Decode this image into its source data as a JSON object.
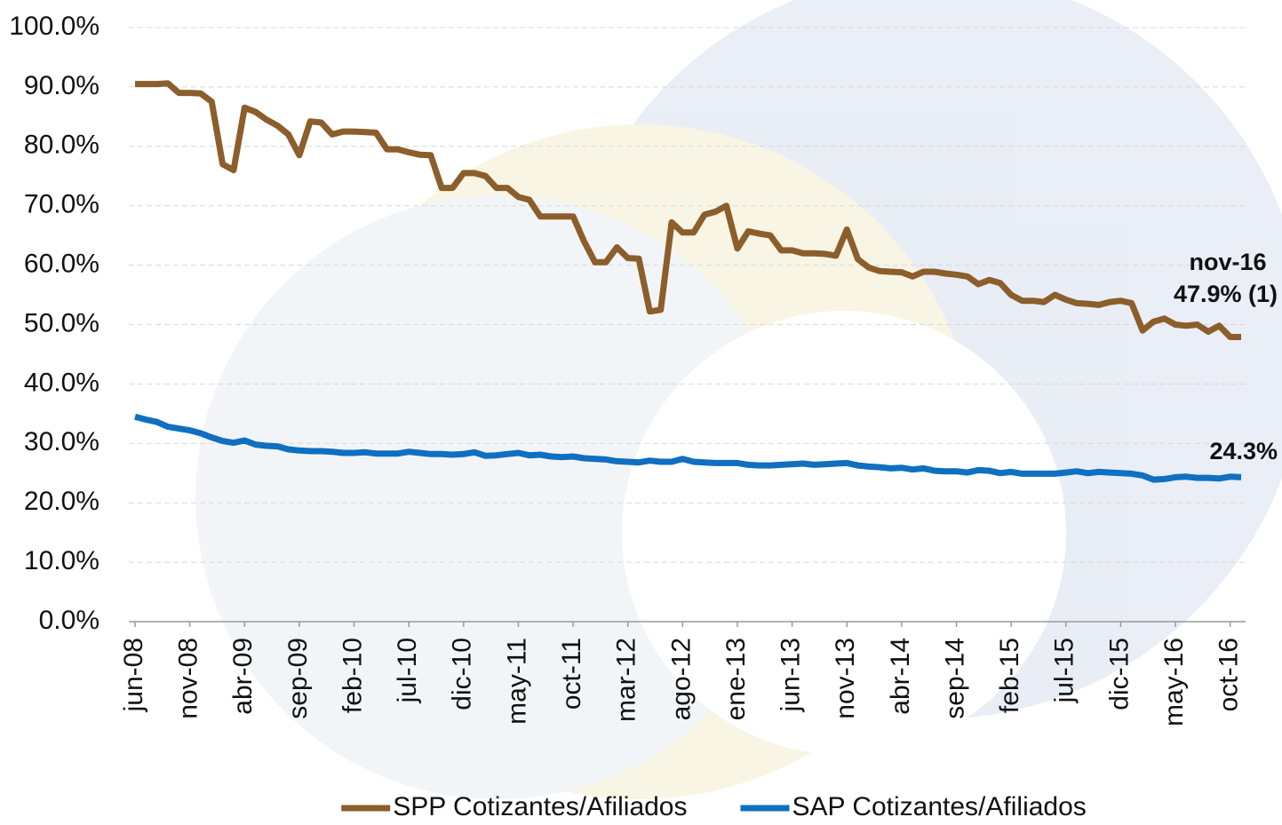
{
  "chart_data": {
    "type": "line",
    "categories": [
      "jun-08",
      null,
      null,
      null,
      null,
      "nov-08",
      null,
      null,
      null,
      null,
      "abr-09",
      null,
      null,
      null,
      null,
      "sep-09",
      null,
      null,
      null,
      null,
      "feb-10",
      null,
      null,
      null,
      null,
      "jul-10",
      null,
      null,
      null,
      null,
      "dic-10",
      null,
      null,
      null,
      null,
      "may-11",
      null,
      null,
      null,
      null,
      "oct-11",
      null,
      null,
      null,
      null,
      "mar-12",
      null,
      null,
      null,
      null,
      "ago-12",
      null,
      null,
      null,
      null,
      "ene-13",
      null,
      null,
      null,
      null,
      "jun-13",
      null,
      null,
      null,
      null,
      "nov-13",
      null,
      null,
      null,
      null,
      "abr-14",
      null,
      null,
      null,
      null,
      "sep-14",
      null,
      null,
      null,
      null,
      "feb-15",
      null,
      null,
      null,
      null,
      "jul-15",
      null,
      null,
      null,
      null,
      "dic-15",
      null,
      null,
      null,
      null,
      "may-16",
      null,
      null,
      null,
      null,
      "oct-16",
      null
    ],
    "series": [
      {
        "name": "SPP Cotizantes/Afiliados",
        "color": "#8b5e2b",
        "values": [
          90.5,
          90.5,
          90.5,
          90.6,
          89,
          89,
          88.9,
          87.5,
          77,
          76,
          86.5,
          85.8,
          84.5,
          83.5,
          82,
          78.5,
          84.2,
          84,
          82,
          82.5,
          82.5,
          82.4,
          82.3,
          79.5,
          79.5,
          79,
          78.6,
          78.5,
          73,
          73,
          75.5,
          75.5,
          75,
          73,
          73,
          71.5,
          71,
          68.2,
          68.2,
          68.2,
          68.2,
          64,
          60.5,
          60.5,
          63,
          61.2,
          61.1,
          52.2,
          52.5,
          67.2,
          65.5,
          65.5,
          68.5,
          69,
          70,
          62.8,
          65.7,
          65.3,
          65,
          62.5,
          62.5,
          62,
          62,
          61.9,
          61.6,
          66,
          61,
          59.6,
          59,
          58.9,
          58.8,
          58.1,
          58.9,
          58.9,
          58.6,
          58.4,
          58.1,
          56.8,
          57.5,
          57,
          55,
          54,
          54,
          53.8,
          55,
          54.2,
          53.6,
          53.5,
          53.3,
          53.8,
          54,
          53.6,
          49,
          50.5,
          51,
          50,
          49.8,
          50,
          48.8,
          49.8,
          47.9,
          47.9
        ]
      },
      {
        "name": "SAP Cotizantes/Afiliados",
        "color": "#0f6fc0",
        "values": [
          34.5,
          34,
          33.6,
          32.8,
          32.5,
          32.2,
          31.7,
          31,
          30.4,
          30.1,
          30.5,
          29.8,
          29.6,
          29.5,
          29,
          28.8,
          28.7,
          28.7,
          28.6,
          28.4,
          28.4,
          28.5,
          28.3,
          28.3,
          28.3,
          28.6,
          28.4,
          28.2,
          28.2,
          28.1,
          28.2,
          28.5,
          27.9,
          28,
          28.2,
          28.4,
          28,
          28.1,
          27.8,
          27.7,
          27.8,
          27.5,
          27.4,
          27.3,
          27,
          26.9,
          26.8,
          27.1,
          26.9,
          26.9,
          27.4,
          26.9,
          26.8,
          26.7,
          26.7,
          26.7,
          26.4,
          26.3,
          26.3,
          26.4,
          26.5,
          26.6,
          26.4,
          26.5,
          26.6,
          26.7,
          26.3,
          26.1,
          26,
          25.8,
          25.9,
          25.6,
          25.8,
          25.4,
          25.3,
          25.3,
          25.1,
          25.5,
          25.4,
          25,
          25.2,
          24.9,
          24.9,
          24.9,
          24.9,
          25.1,
          25.3,
          25,
          25.2,
          25.1,
          25,
          24.9,
          24.6,
          23.9,
          24,
          24.3,
          24.4,
          24.2,
          24.2,
          24.1,
          24.4,
          24.3
        ]
      }
    ],
    "annotations": [
      "nov-16",
      "47.9% (1)",
      "24.3%"
    ],
    "ylim": [
      0,
      100
    ],
    "yticks": [
      {
        "value": 0,
        "label": "0.0%"
      },
      {
        "value": 10,
        "label": "10.0%"
      },
      {
        "value": 20,
        "label": "20.0%"
      },
      {
        "value": 30,
        "label": "30.0%"
      },
      {
        "value": 40,
        "label": "40.0%"
      },
      {
        "value": 50,
        "label": "50.0%"
      },
      {
        "value": 60,
        "label": "60.0%"
      },
      {
        "value": 70,
        "label": "70.0%"
      },
      {
        "value": 80,
        "label": "80.0%"
      },
      {
        "value": 90,
        "label": "90.0%"
      },
      {
        "value": 100,
        "label": "100.0%"
      }
    ],
    "grid": true,
    "legend": "bottom"
  }
}
